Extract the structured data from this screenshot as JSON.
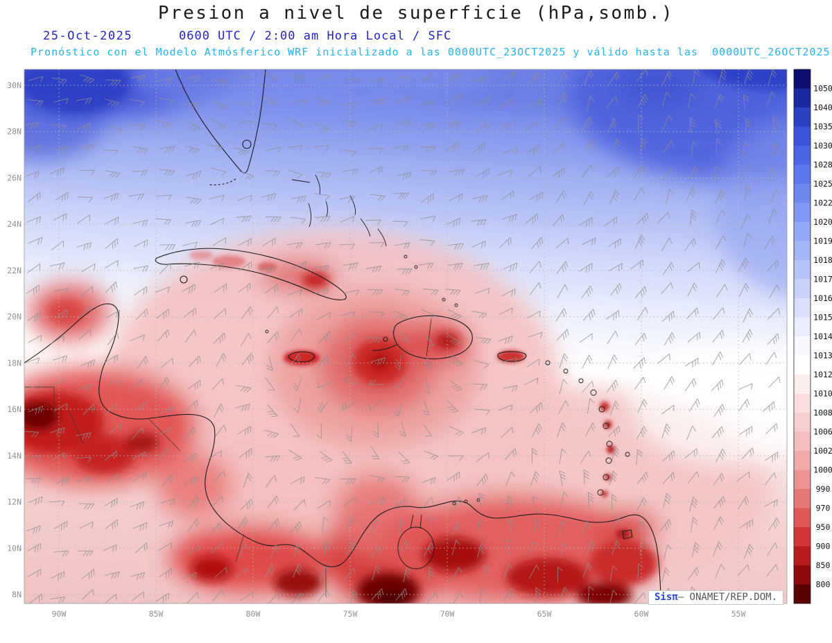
{
  "header": {
    "title": "Presion a nivel de superficie (hPa,somb.)",
    "date": "25-Oct-2025",
    "time_line": "0600 UTC / 2:00 am Hora Local / SFC",
    "forecast_line": "Pronóstico con el Modelo Atmósferico WRF inicializado a las 0000UTC_23OCT2025 y válido hasta las  0000UTC_26OCT2025"
  },
  "watermark": {
    "brand": "Sisπ",
    "org": "– ONAMET/REP.DOM."
  },
  "chart_data": {
    "type": "heatmap",
    "title": "Presion a nivel de superficie (hPa,somb.)",
    "variable": "surface pressure, shaded",
    "units": "hPa",
    "level": "SFC",
    "model": "WRF",
    "run_init": "0000UTC_23OCT2025",
    "valid_until": "0000UTC_26OCT2025",
    "valid_at": "25-Oct-2025 0600 UTC / 2:00 am Hora Local",
    "lat_ticks": [
      "30N",
      "28N",
      "26N",
      "24N",
      "22N",
      "20N",
      "18N",
      "16N",
      "14N",
      "12N",
      "10N",
      "8N"
    ],
    "lon_ticks": [
      "90W",
      "85W",
      "80W",
      "75W",
      "70W",
      "65W",
      "60W",
      "55W"
    ],
    "extent": {
      "lon_left": "92W",
      "lon_right": "52.5W",
      "lat_top": "30.7N",
      "lat_bottom": "7.5N"
    },
    "grid": "dotted",
    "legend_position": "right",
    "colorbar": {
      "values": [
        "1050",
        "1040",
        "1035",
        "1030",
        "1028",
        "1025",
        "1022",
        "1020",
        "1019",
        "1018",
        "1017",
        "1016",
        "1015",
        "1014",
        "1013",
        "1012",
        "1010",
        "1008",
        "1006",
        "1002",
        "1000",
        "990",
        "970",
        "950",
        "900",
        "850",
        "800"
      ],
      "colors": [
        "#0d0d70",
        "#1b2a9e",
        "#2a41c4",
        "#3a55dc",
        "#4b66e6",
        "#5d77ec",
        "#6f88f0",
        "#8198f4",
        "#93a8f6",
        "#a5b6f8",
        "#b7c4fa",
        "#c9d2fb",
        "#dadffc",
        "#eaedfd",
        "#f7f8fe",
        "#ffffff",
        "#fdeeee",
        "#fbdfdf",
        "#f8cfcf",
        "#f5bdbd",
        "#f1a9a9",
        "#ec9292",
        "#e67777",
        "#de5858",
        "#d23636",
        "#b81c1c",
        "#8f0a0a",
        "#5a0000"
      ]
    },
    "wind_barbs": {
      "color": "#8f8f8f",
      "coverage": "full domain"
    },
    "tick_label_color": "#909090",
    "high_pressure_region": "north (blue shading, ~1016-1050 hPa)",
    "low_pressure_region": "Caribbean / Central America / northern South America (red shading)"
  }
}
